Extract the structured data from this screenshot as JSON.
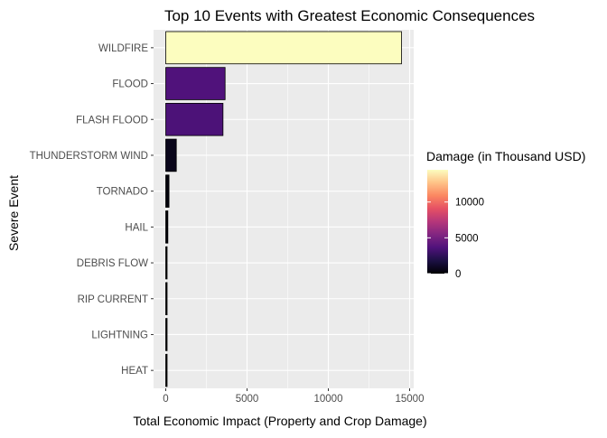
{
  "chart_data": {
    "type": "bar",
    "orientation": "horizontal",
    "title": "Top 10 Events with Greatest Economic Consequences",
    "xlabel": "Total Economic Impact (Property and Crop Damage)",
    "ylabel": "Severe Event",
    "categories": [
      "WILDFIRE",
      "FLOOD",
      "FLASH FLOOD",
      "THUNDERSTORM WIND",
      "TORNADO",
      "HAIL",
      "DEBRIS FLOW",
      "RIP CURRENT",
      "LIGHTNING",
      "HEAT"
    ],
    "values": [
      14500,
      3650,
      3520,
      650,
      200,
      130,
      60,
      40,
      30,
      20
    ],
    "xlim": [
      -750,
      15250
    ],
    "xticks": [
      0,
      5000,
      10000,
      15000
    ],
    "xtick_labels": [
      "0",
      "5000",
      "10000",
      "15000"
    ],
    "grid": true,
    "panel_background": "#ebebeb",
    "grid_color": "#ffffff",
    "bar_outline": "#000000",
    "legend": {
      "title": "Damage (in Thousand USD)",
      "position": "right",
      "type": "colorbar",
      "min": 0,
      "max": 14500,
      "ticks": [
        0,
        5000,
        10000
      ],
      "tick_labels": [
        "0",
        "5000",
        "10000"
      ],
      "colormap": "magma",
      "colors": [
        "#000004",
        "#1c1044",
        "#4f127b",
        "#812581",
        "#b5367a",
        "#e55064",
        "#fb8761",
        "#fec287",
        "#fcfdbf"
      ]
    }
  }
}
